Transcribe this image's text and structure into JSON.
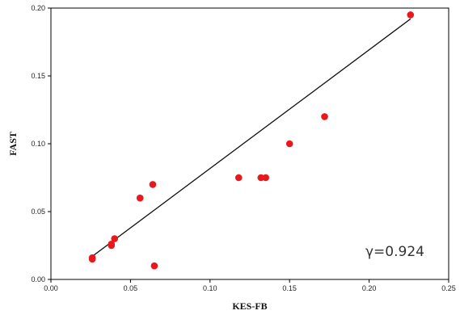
{
  "chart_data": {
    "type": "scatter",
    "xlabel": "KES-FB",
    "ylabel": "FAST",
    "xlim": [
      0.0,
      0.25
    ],
    "ylim": [
      0.0,
      0.2
    ],
    "x_ticks": [
      "0.00",
      "0.05",
      "0.10",
      "0.15",
      "0.20",
      "0.25"
    ],
    "y_ticks": [
      "0.00",
      "0.05",
      "0.10",
      "0.15",
      "0.20"
    ],
    "grid": false,
    "series": [
      {
        "color": "#e8191b",
        "points": [
          {
            "x": 0.026,
            "y": 0.016
          },
          {
            "x": 0.026,
            "y": 0.015
          },
          {
            "x": 0.038,
            "y": 0.025
          },
          {
            "x": 0.038,
            "y": 0.026
          },
          {
            "x": 0.04,
            "y": 0.03
          },
          {
            "x": 0.056,
            "y": 0.06
          },
          {
            "x": 0.064,
            "y": 0.07
          },
          {
            "x": 0.065,
            "y": 0.01
          },
          {
            "x": 0.118,
            "y": 0.075
          },
          {
            "x": 0.132,
            "y": 0.075
          },
          {
            "x": 0.135,
            "y": 0.075
          },
          {
            "x": 0.15,
            "y": 0.1
          },
          {
            "x": 0.172,
            "y": 0.12
          },
          {
            "x": 0.226,
            "y": 0.195
          }
        ]
      }
    ],
    "fit_line": {
      "x": [
        0.026,
        0.226
      ],
      "y": [
        0.017,
        0.192
      ],
      "color": "#111111"
    },
    "annotation": "γ=0.924"
  }
}
